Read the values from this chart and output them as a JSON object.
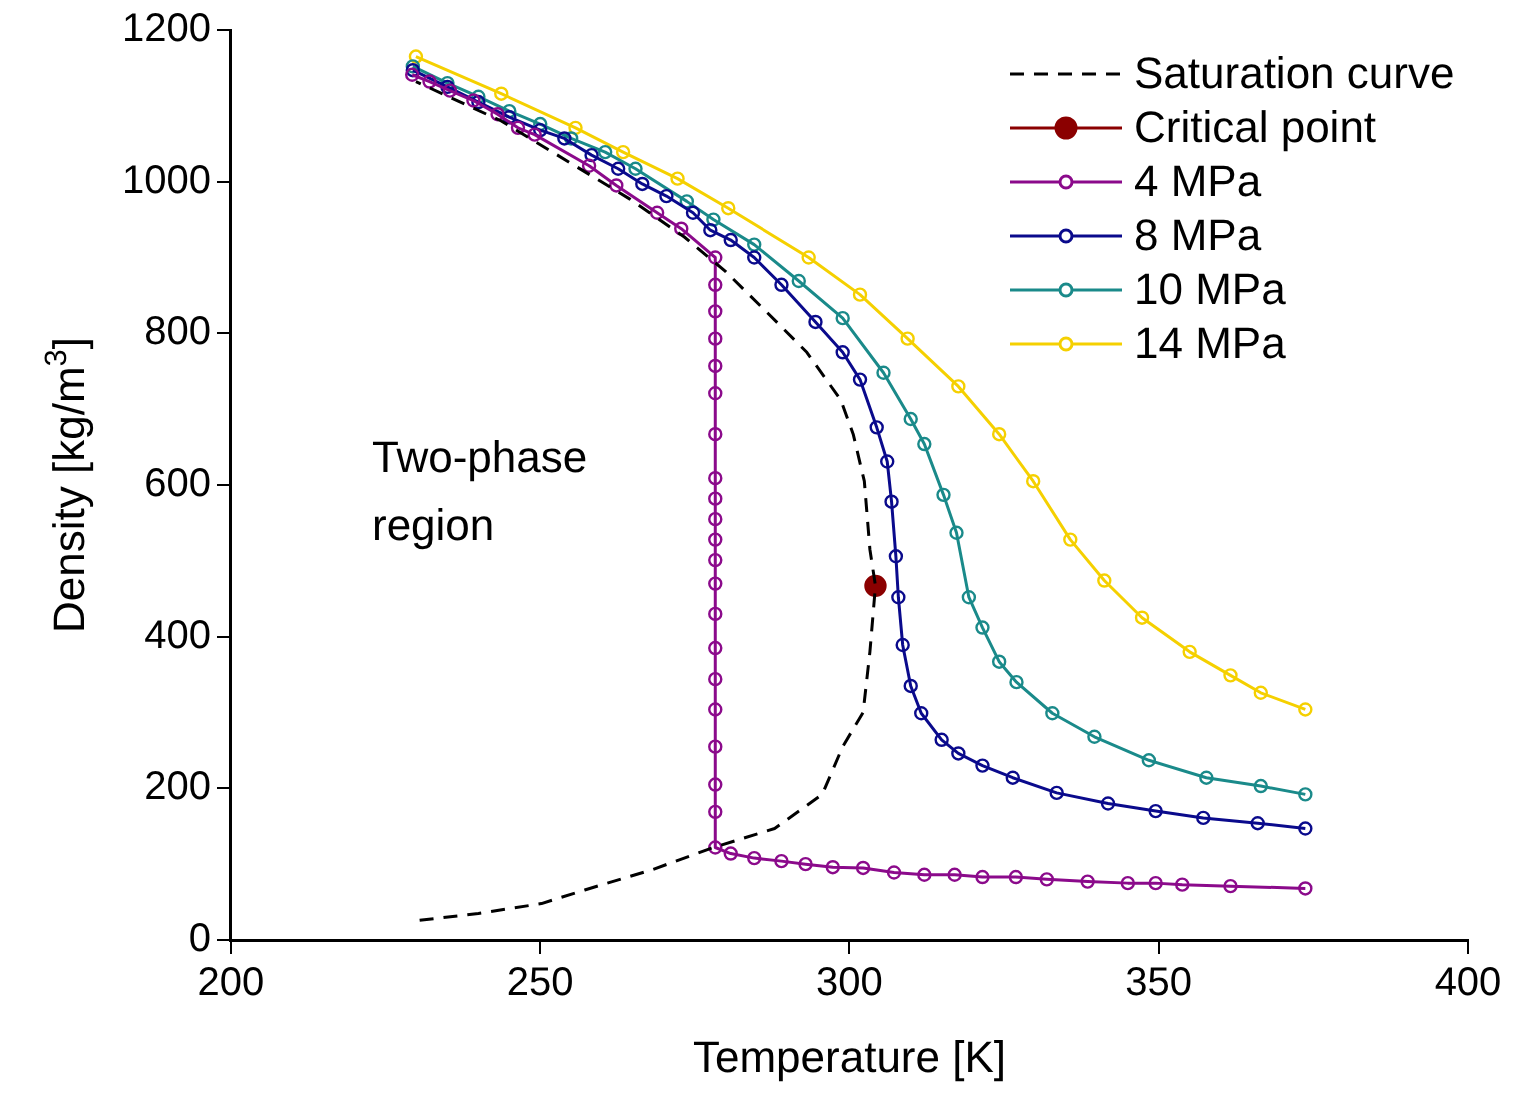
{
  "chart_data": {
    "type": "line",
    "xlabel": "Temperature [K]",
    "ylabel": "Density [kg/m$^{3}$]",
    "xlim": [
      200,
      400
    ],
    "xticks": [
      200,
      250,
      300,
      350,
      400
    ],
    "ylim": [
      0,
      1200
    ],
    "yticks": [
      0,
      200,
      400,
      600,
      800,
      1000,
      1200
    ],
    "grid": false,
    "legend": "top right",
    "annotations": [
      "Two-phase region"
    ],
    "series": [
      {
        "name": "Saturation curve",
        "color": "#000000",
        "line_style": "dashed",
        "marker": "none",
        "x": [
          230.5,
          240,
          250.2,
          257.2,
          268.2,
          278,
          287.9,
          295.6,
          298.9,
          302.2,
          303.3,
          304.2,
          303.3,
          302.4,
          300.6,
          298.6,
          293.1,
          286.5,
          279.9,
          273.3,
          264.5,
          254.6,
          243.7,
          229.9
        ],
        "values": [
          26,
          35,
          48,
          66,
          93,
          122,
          147,
          192,
          255,
          300,
          380,
          467,
          515,
          605,
          667,
          712,
          775,
          829,
          882,
          927,
          977,
          1026,
          1080,
          1132
        ]
      },
      {
        "name": "Critical point",
        "color": "#8b0000",
        "marker": "circle",
        "x": [
          304.2
        ],
        "values": [
          467
        ]
      },
      {
        "name": "4 MPa",
        "color": "#8b0a8b",
        "marker": "circle",
        "x": [
          229.3,
          232.1,
          235.4,
          239.2,
          243.1,
          246.4,
          249.1,
          257.9,
          262.3,
          268.9,
          272.8,
          278.3,
          278.3,
          278.3,
          278.3,
          278.3,
          278.3,
          278.3,
          278.3,
          278.3,
          278.3,
          278.3,
          278.3,
          278.3,
          278.3,
          278.3,
          278.3,
          278.3,
          278.3,
          278.3,
          278.3,
          278.3,
          280.8,
          284.6,
          289,
          292.9,
          297.3,
          302.2,
          307.2,
          312.1,
          317,
          321.5,
          326.9,
          331.9,
          338.5,
          345,
          349.5,
          353.8,
          361.6,
          373.7
        ],
        "values": [
          1141,
          1132,
          1120,
          1107,
          1089,
          1071,
          1062,
          1021,
          995,
          959,
          938,
          900,
          864,
          829,
          793,
          757,
          721,
          667,
          609,
          582,
          555,
          528,
          501,
          470,
          430,
          385,
          344,
          304,
          255,
          205,
          169,
          122,
          114,
          108,
          104,
          100,
          96,
          95,
          89,
          86,
          86,
          83,
          83,
          80,
          77,
          75,
          75,
          73,
          71,
          68
        ]
      },
      {
        "name": "8 MPa",
        "color": "#0a0a8c",
        "marker": "circle",
        "x": [
          229.4,
          235,
          240,
          245,
          250,
          253.9,
          258.3,
          262.6,
          266.5,
          270.4,
          274.7,
          277.5,
          280.8,
          284.6,
          289,
          294.5,
          298.9,
          301.7,
          304.4,
          306.1,
          306.8,
          307.5,
          307.9,
          308.6,
          309.9,
          311.6,
          314.9,
          317.6,
          321.5,
          326.4,
          333.5,
          341.8,
          349.5,
          357.2,
          366,
          373.7
        ],
        "values": [
          1147,
          1125,
          1105,
          1085,
          1068,
          1057,
          1035,
          1017,
          997,
          981,
          959,
          936,
          923,
          900,
          864,
          815,
          775,
          739,
          676,
          631,
          578,
          506,
          452,
          389,
          335,
          299,
          264,
          246,
          230,
          214,
          194,
          180,
          170,
          161,
          154,
          147
        ]
      },
      {
        "name": "10 MPa",
        "color": "#1a8a8a",
        "marker": "circle",
        "x": [
          229.4,
          235,
          240,
          245,
          250,
          255,
          260.5,
          265.4,
          273.7,
          278,
          284.6,
          291.8,
          298.9,
          305.5,
          309.9,
          312.1,
          315.2,
          317.3,
          319.3,
          321.5,
          324.2,
          327,
          332.8,
          339.6,
          348.4,
          357.7,
          366.5,
          373.7
        ],
        "values": [
          1152,
          1130,
          1112,
          1093,
          1076,
          1057,
          1039,
          1017,
          974,
          950,
          917,
          869,
          820,
          748,
          687,
          654,
          587,
          537,
          452,
          412,
          367,
          340,
          299,
          268,
          237,
          214,
          203,
          192
        ]
      },
      {
        "name": "14 MPa",
        "color": "#f5d000",
        "marker": "circle",
        "x": [
          229.9,
          243.7,
          255.7,
          263.4,
          272.2,
          280.4,
          293.4,
          301.7,
          309.4,
          317.6,
          324.2,
          329.7,
          335.7,
          341.2,
          347.3,
          355,
          361.6,
          366.5,
          373.7
        ],
        "values": [
          1165,
          1116,
          1071,
          1039,
          1004,
          965,
          900,
          851,
          793,
          730,
          667,
          605,
          528,
          474,
          425,
          380,
          349,
          326,
          304
        ]
      }
    ]
  }
}
